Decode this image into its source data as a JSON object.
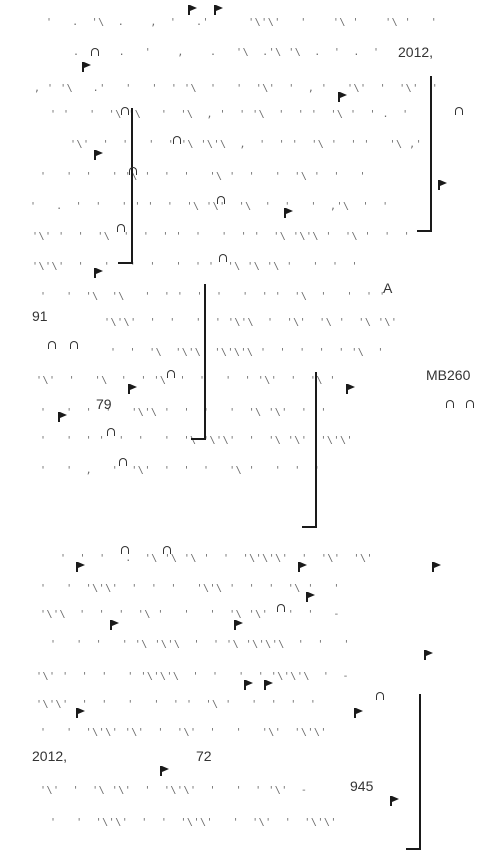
{
  "texts": {
    "t1": "2012,",
    "t2": "A",
    "t3": "91",
    "t4": "MB260",
    "t5": "79",
    "t6": "2012,",
    "t7": "72",
    "t8": "945"
  },
  "colors": {
    "ink": "#1a1a1a",
    "noise": "#6a6a6a",
    "text": "#333333",
    "background": "#ffffff"
  },
  "icons": {
    "flag": "flag-marker-icon",
    "arch": "arch-glyph-icon"
  }
}
